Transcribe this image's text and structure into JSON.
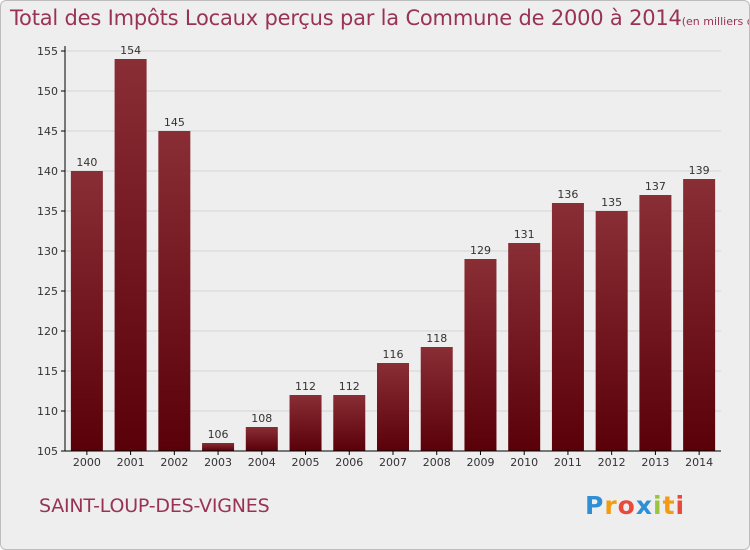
{
  "title": "Total des Impôts Locaux perçus par la Commune de 2000 à 2014",
  "title_unit": "(en milliers d'€)",
  "commune": "SAINT-LOUP-DES-VIGNES",
  "logo": {
    "text": "Proxiti",
    "letter_colors": [
      "#2e8fd6",
      "#f39c12",
      "#e84a3c",
      "#2e8fd6",
      "#9bc53d",
      "#f39c12",
      "#e84a3c"
    ]
  },
  "colors": {
    "title": "#993355",
    "bar_top": "#8a2e36",
    "bar_bottom": "#5a0008",
    "axis": "#000000",
    "grid": "#d4d4d4",
    "background": "#eeeeee"
  },
  "chart_data": {
    "type": "bar",
    "categories": [
      "2000",
      "2001",
      "2002",
      "2003",
      "2004",
      "2005",
      "2006",
      "2007",
      "2008",
      "2009",
      "2010",
      "2011",
      "2012",
      "2013",
      "2014"
    ],
    "values": [
      140,
      154,
      145,
      106,
      108,
      112,
      112,
      116,
      118,
      129,
      131,
      136,
      135,
      137,
      139
    ],
    "ylim": [
      105,
      155
    ],
    "yticks": [
      105,
      110,
      115,
      120,
      125,
      130,
      135,
      140,
      145,
      150,
      155
    ],
    "grid": "horizontal",
    "title": "Total des Impôts Locaux perçus par la Commune de 2000 à 2014",
    "xlabel": "",
    "ylabel": ""
  }
}
